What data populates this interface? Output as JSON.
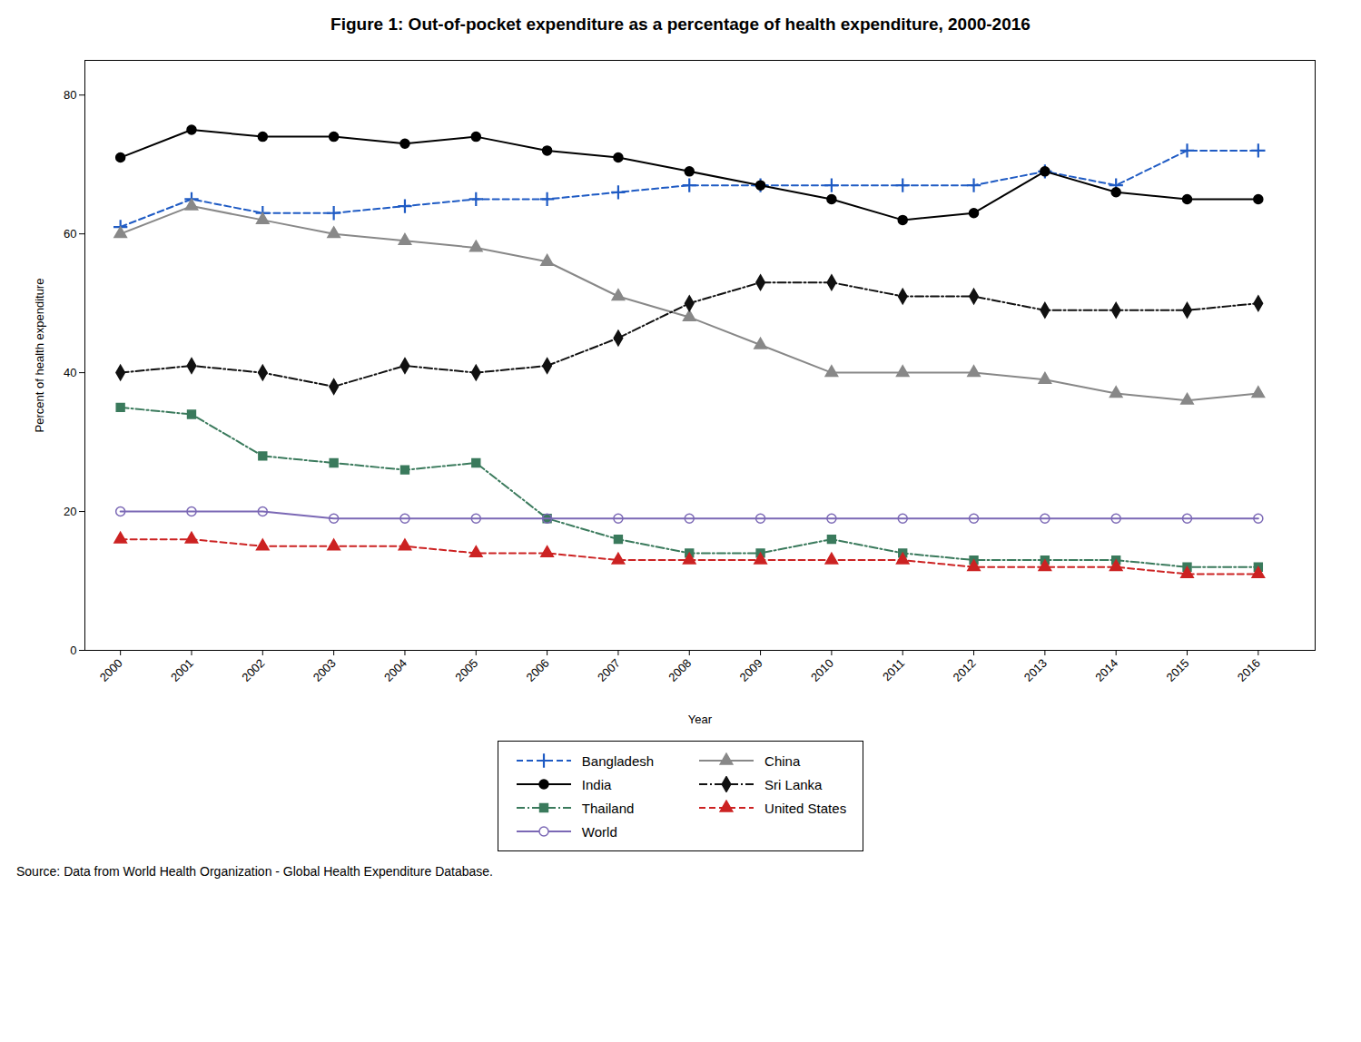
{
  "chart_data": {
    "type": "line",
    "title": "Figure 1: Out-of-pocket expenditure as a percentage of health expenditure, 2000-2016",
    "xlabel": "Year",
    "ylabel": "Percent of health expenditure",
    "source": "Source: Data from World Health Organization - Global Health Expenditure Database.",
    "x": [
      2000,
      2001,
      2002,
      2003,
      2004,
      2005,
      2006,
      2007,
      2008,
      2009,
      2010,
      2011,
      2012,
      2013,
      2014,
      2015,
      2016
    ],
    "series": [
      {
        "name": "Bangladesh",
        "color": "#1f5bc4",
        "marker": "plus",
        "line_style": "dashed",
        "values": [
          61,
          65,
          63,
          63,
          64,
          65,
          65,
          66,
          67,
          67,
          67,
          67,
          67,
          69,
          67,
          72,
          72
        ]
      },
      {
        "name": "India",
        "color": "#000000",
        "marker": "circle",
        "line_style": "solid",
        "values": [
          71,
          75,
          74,
          74,
          73,
          74,
          72,
          71,
          69,
          67,
          65,
          62,
          63,
          69,
          66,
          65,
          65
        ]
      },
      {
        "name": "Thailand",
        "color": "#3a7a5c",
        "marker": "square",
        "line_style": "dashdot",
        "values": [
          35,
          34,
          28,
          27,
          26,
          27,
          19,
          16,
          14,
          14,
          16,
          14,
          13,
          13,
          13,
          12,
          12
        ]
      },
      {
        "name": "World",
        "color": "#7b68b5",
        "marker": "open_circle",
        "line_style": "solid",
        "values": [
          20,
          20,
          20,
          19,
          19,
          19,
          19,
          19,
          19,
          19,
          19,
          19,
          19,
          19,
          19,
          19,
          19
        ]
      },
      {
        "name": "China",
        "color": "#888888",
        "marker": "triangle",
        "line_style": "solid",
        "values": [
          60,
          64,
          62,
          60,
          59,
          58,
          56,
          51,
          48,
          44,
          40,
          40,
          40,
          39,
          37,
          36,
          37
        ]
      },
      {
        "name": "Sri Lanka",
        "color": "#111111",
        "marker": "diamond",
        "line_style": "dashdot",
        "values": [
          40,
          41,
          40,
          38,
          41,
          40,
          41,
          45,
          50,
          53,
          53,
          51,
          51,
          49,
          49,
          49,
          50
        ]
      },
      {
        "name": "United States",
        "color": "#cc2222",
        "marker": "triangle",
        "line_style": "dashed",
        "values": [
          16,
          16,
          15,
          15,
          15,
          14,
          14,
          13,
          13,
          13,
          13,
          13,
          12,
          12,
          12,
          11,
          11
        ]
      }
    ],
    "xlim": [
      1999.5,
      2016.8
    ],
    "xticks": [
      2000,
      2001,
      2002,
      2003,
      2004,
      2005,
      2006,
      2007,
      2008,
      2009,
      2010,
      2011,
      2012,
      2013,
      2014,
      2015,
      2016
    ],
    "ylim": [
      0,
      85
    ],
    "yticks": [
      0,
      20,
      40,
      60,
      80
    ],
    "grid": false,
    "legend": "bottom"
  }
}
